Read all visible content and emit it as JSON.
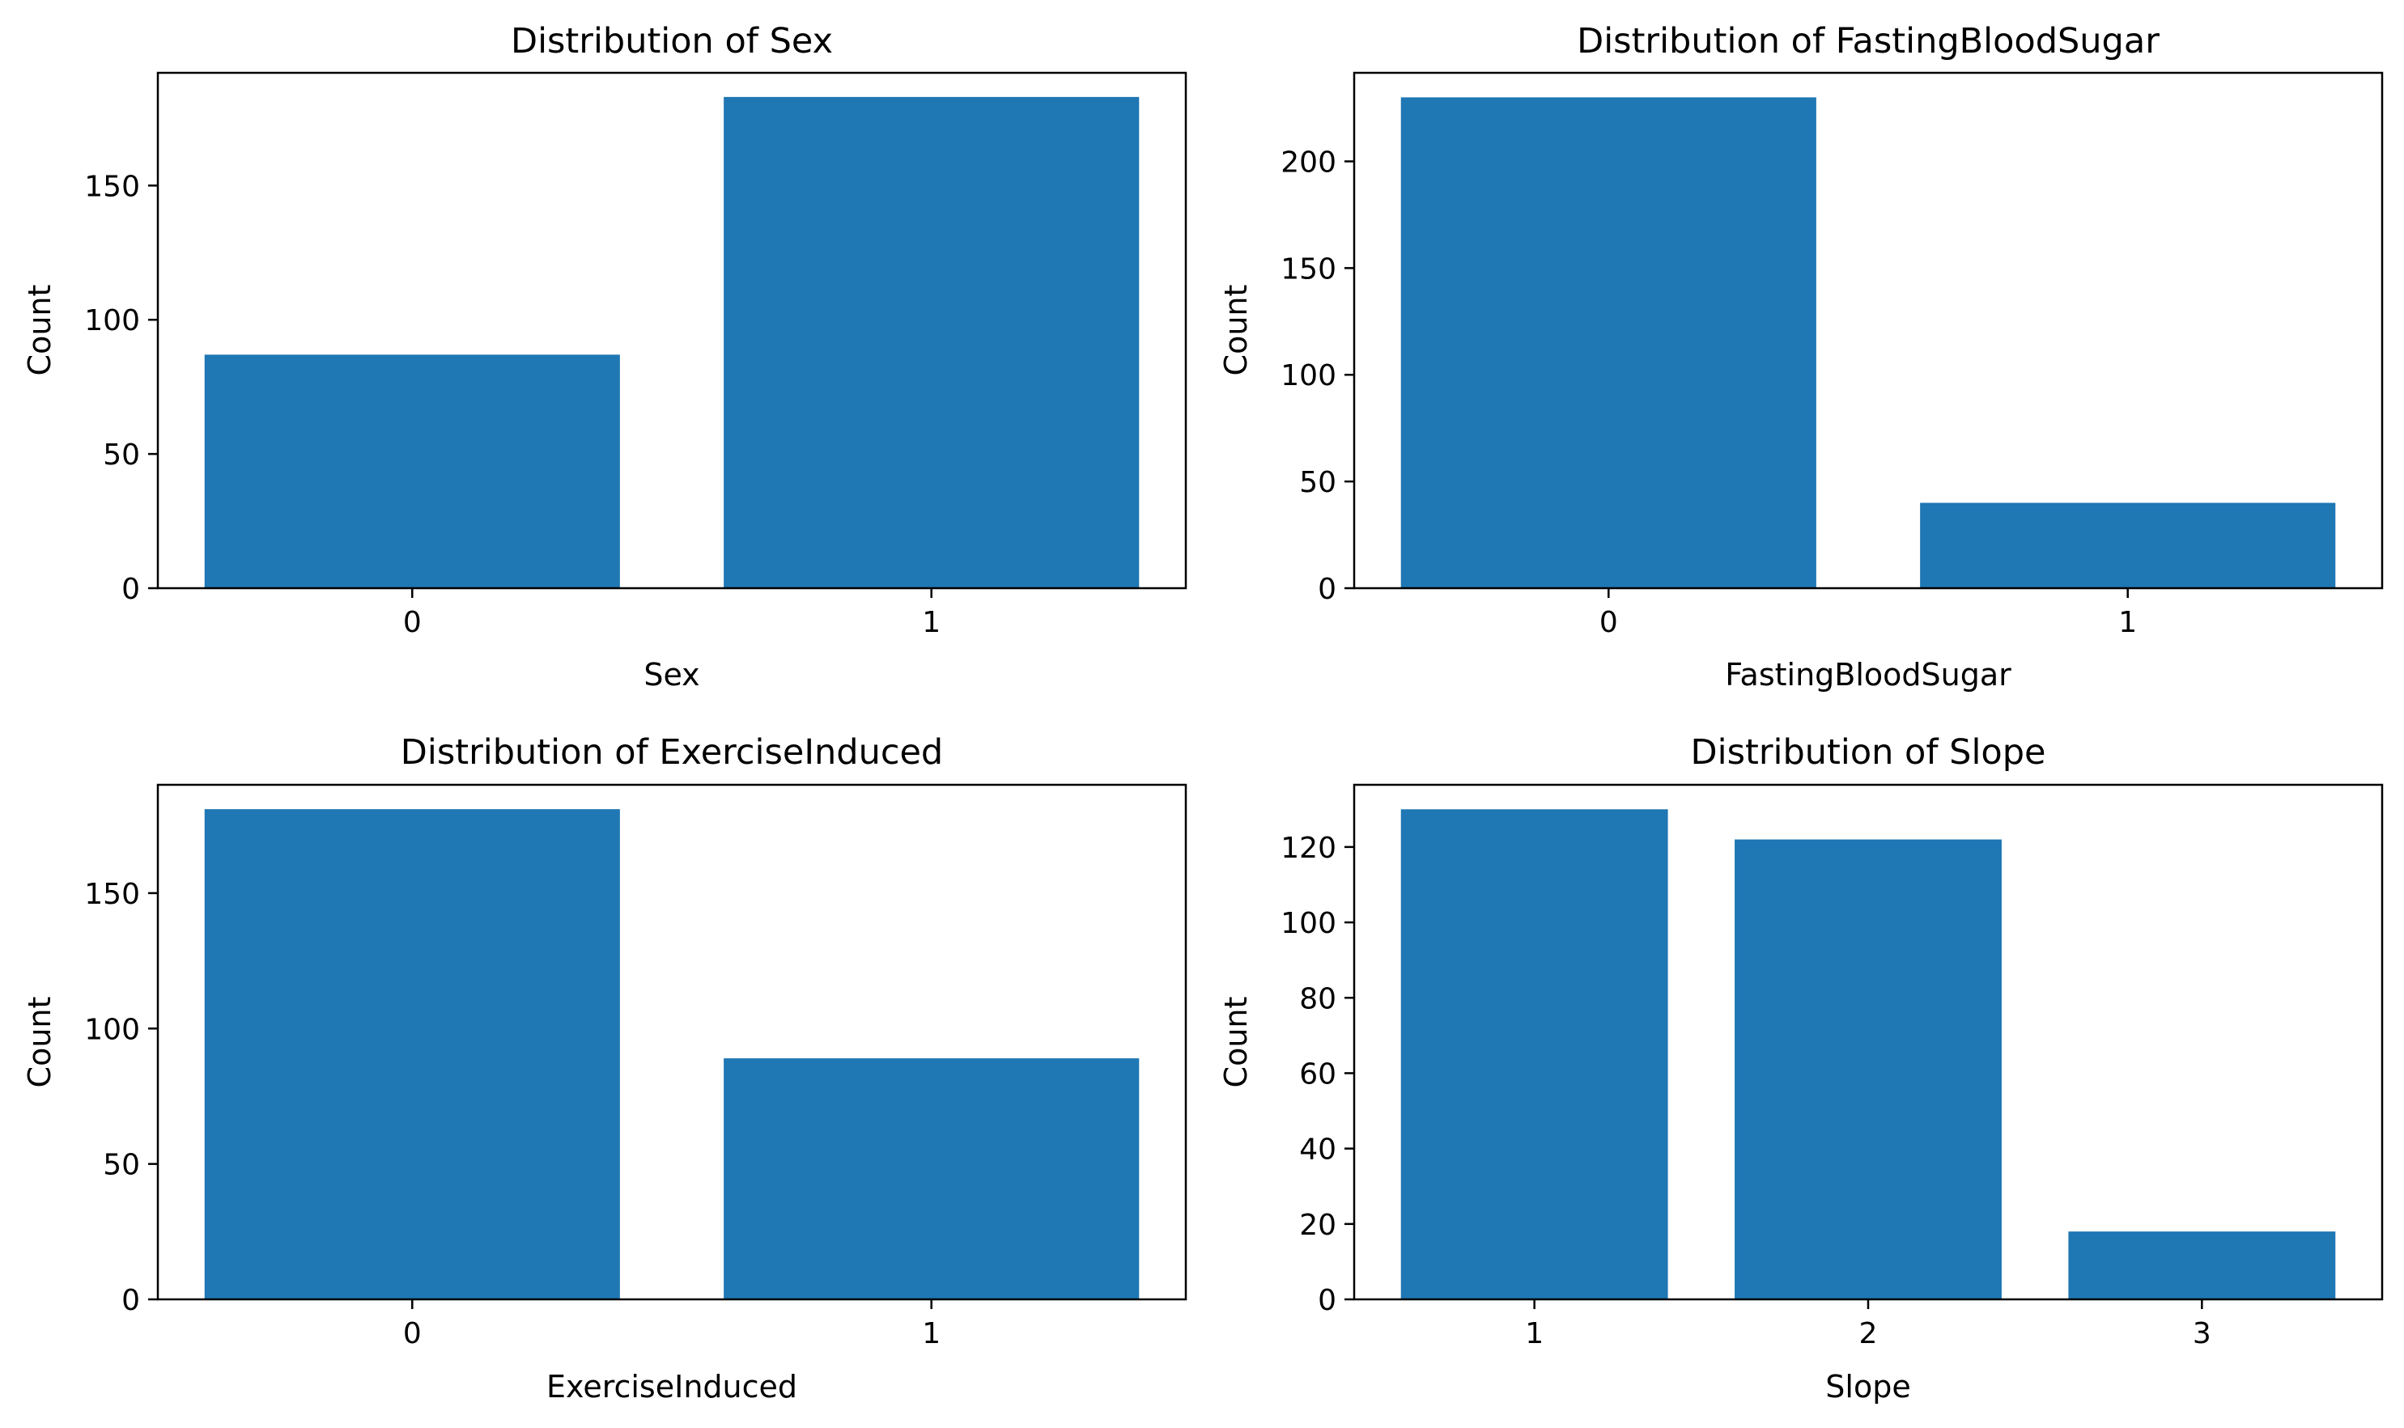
{
  "bar_color": "#1f77b4",
  "chart_data": [
    {
      "type": "bar",
      "title": "Distribution of Sex",
      "xlabel": "Sex",
      "ylabel": "Count",
      "categories": [
        "0",
        "1"
      ],
      "values": [
        87,
        183
      ],
      "ylim": [
        0,
        192
      ],
      "yticks": [
        0,
        50,
        100,
        150
      ]
    },
    {
      "type": "bar",
      "title": "Distribution of FastingBloodSugar",
      "xlabel": "FastingBloodSugar",
      "ylabel": "Count",
      "categories": [
        "0",
        "1"
      ],
      "values": [
        230,
        40
      ],
      "ylim": [
        0,
        241.5
      ],
      "yticks": [
        0,
        50,
        100,
        150,
        200
      ]
    },
    {
      "type": "bar",
      "title": "Distribution of ExerciseInduced",
      "xlabel": "ExerciseInduced",
      "ylabel": "Count",
      "categories": [
        "0",
        "1"
      ],
      "values": [
        181,
        89
      ],
      "ylim": [
        0,
        190
      ],
      "yticks": [
        0,
        50,
        100,
        150
      ]
    },
    {
      "type": "bar",
      "title": "Distribution of Slope",
      "xlabel": "Slope",
      "ylabel": "Count",
      "categories": [
        "1",
        "2",
        "3"
      ],
      "values": [
        130,
        122,
        18
      ],
      "ylim": [
        0,
        136.5
      ],
      "yticks": [
        0,
        20,
        40,
        60,
        80,
        100,
        120
      ]
    }
  ]
}
